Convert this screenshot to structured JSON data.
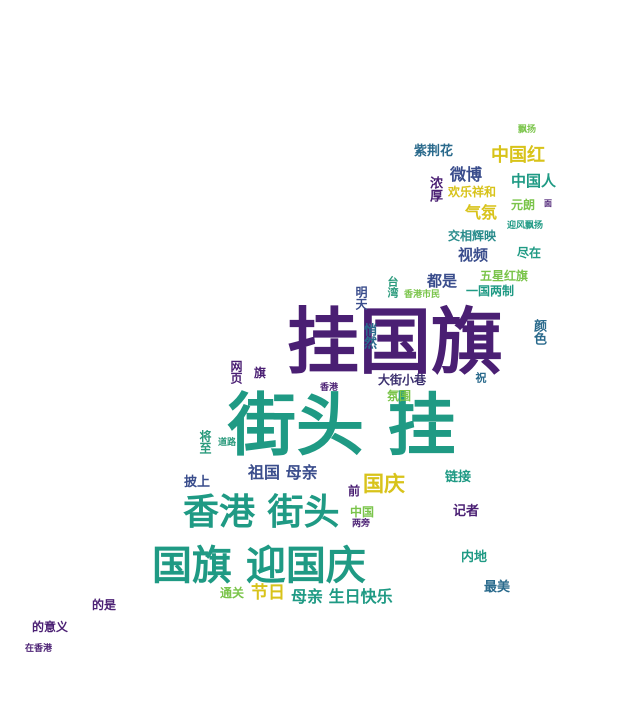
{
  "words": [
    {
      "text": "挂国旗",
      "color": "#4a1f73"
    },
    {
      "text": "街头 挂",
      "color": "#1f9a84"
    },
    {
      "text": "国旗 迎国庆",
      "color": "#1f9a84"
    },
    {
      "text": "香港 街头",
      "color": "#1f9a84"
    },
    {
      "text": "国庆",
      "color": "#d8c31a"
    },
    {
      "text": "祖国 母亲",
      "color": "#3a4d8c"
    },
    {
      "text": "母亲 生日快乐",
      "color": "#1f9a84"
    },
    {
      "text": "节日",
      "color": "#d8c31a"
    },
    {
      "text": "通关",
      "color": "#7ac44a"
    },
    {
      "text": "中国红",
      "color": "#d8c31a"
    },
    {
      "text": "中国人",
      "color": "#1f9a84"
    },
    {
      "text": "微博",
      "color": "#3a4d8c"
    },
    {
      "text": "紫荆花",
      "color": "#2a6a8c"
    },
    {
      "text": "欢乐祥和",
      "color": "#d8c31a"
    },
    {
      "text": "气氛",
      "color": "#d8c31a"
    },
    {
      "text": "元朗",
      "color": "#7ac44a"
    },
    {
      "text": "浓厚",
      "color": "#4a1f73"
    },
    {
      "text": "交相辉映",
      "color": "#2a8c8c"
    },
    {
      "text": "迎风飘扬",
      "color": "#1f9a84"
    },
    {
      "text": "视频",
      "color": "#3a4d8c"
    },
    {
      "text": "尽在",
      "color": "#1f9a84"
    },
    {
      "text": "都是",
      "color": "#3a4d8c"
    },
    {
      "text": "五星红旗",
      "color": "#7ac44a"
    },
    {
      "text": "一国两制",
      "color": "#1f9a84"
    },
    {
      "text": "台湾",
      "color": "#2a9a7c"
    },
    {
      "text": "香港市民",
      "color": "#7ac44a"
    },
    {
      "text": "明天",
      "color": "#3a4d8c"
    },
    {
      "text": "悄然",
      "color": "#2a6a8c"
    },
    {
      "text": "颜色",
      "color": "#2a6a8c"
    },
    {
      "text": "大街小巷",
      "color": "#3a2f6e"
    },
    {
      "text": "祝",
      "color": "#2a6a8c"
    },
    {
      "text": "氛围",
      "color": "#7ac44a"
    },
    {
      "text": "网页",
      "color": "#4a1f73"
    },
    {
      "text": "旗",
      "color": "#4a1f73"
    },
    {
      "text": "香港",
      "color": "#4a1f73"
    },
    {
      "text": "将至",
      "color": "#2a9a7c"
    },
    {
      "text": "道路",
      "color": "#2a9a7c"
    },
    {
      "text": "披上",
      "color": "#3a4d8c"
    },
    {
      "text": "前",
      "color": "#4a1f73"
    },
    {
      "text": "链接",
      "color": "#1f9a84"
    },
    {
      "text": "中国",
      "color": "#7ac44a"
    },
    {
      "text": "两旁",
      "color": "#4a1f73"
    },
    {
      "text": "记者",
      "color": "#4a1f73"
    },
    {
      "text": "内地",
      "color": "#1f9a84"
    },
    {
      "text": "最美",
      "color": "#2a6a8c"
    },
    {
      "text": "的是",
      "color": "#4a1f73"
    },
    {
      "text": "的意义",
      "color": "#4a1f73"
    },
    {
      "text": "在香港",
      "color": "#4a1f73"
    },
    {
      "text": "飘扬",
      "color": "#7ac44a"
    },
    {
      "text": "面",
      "color": "#4a1f73"
    }
  ]
}
